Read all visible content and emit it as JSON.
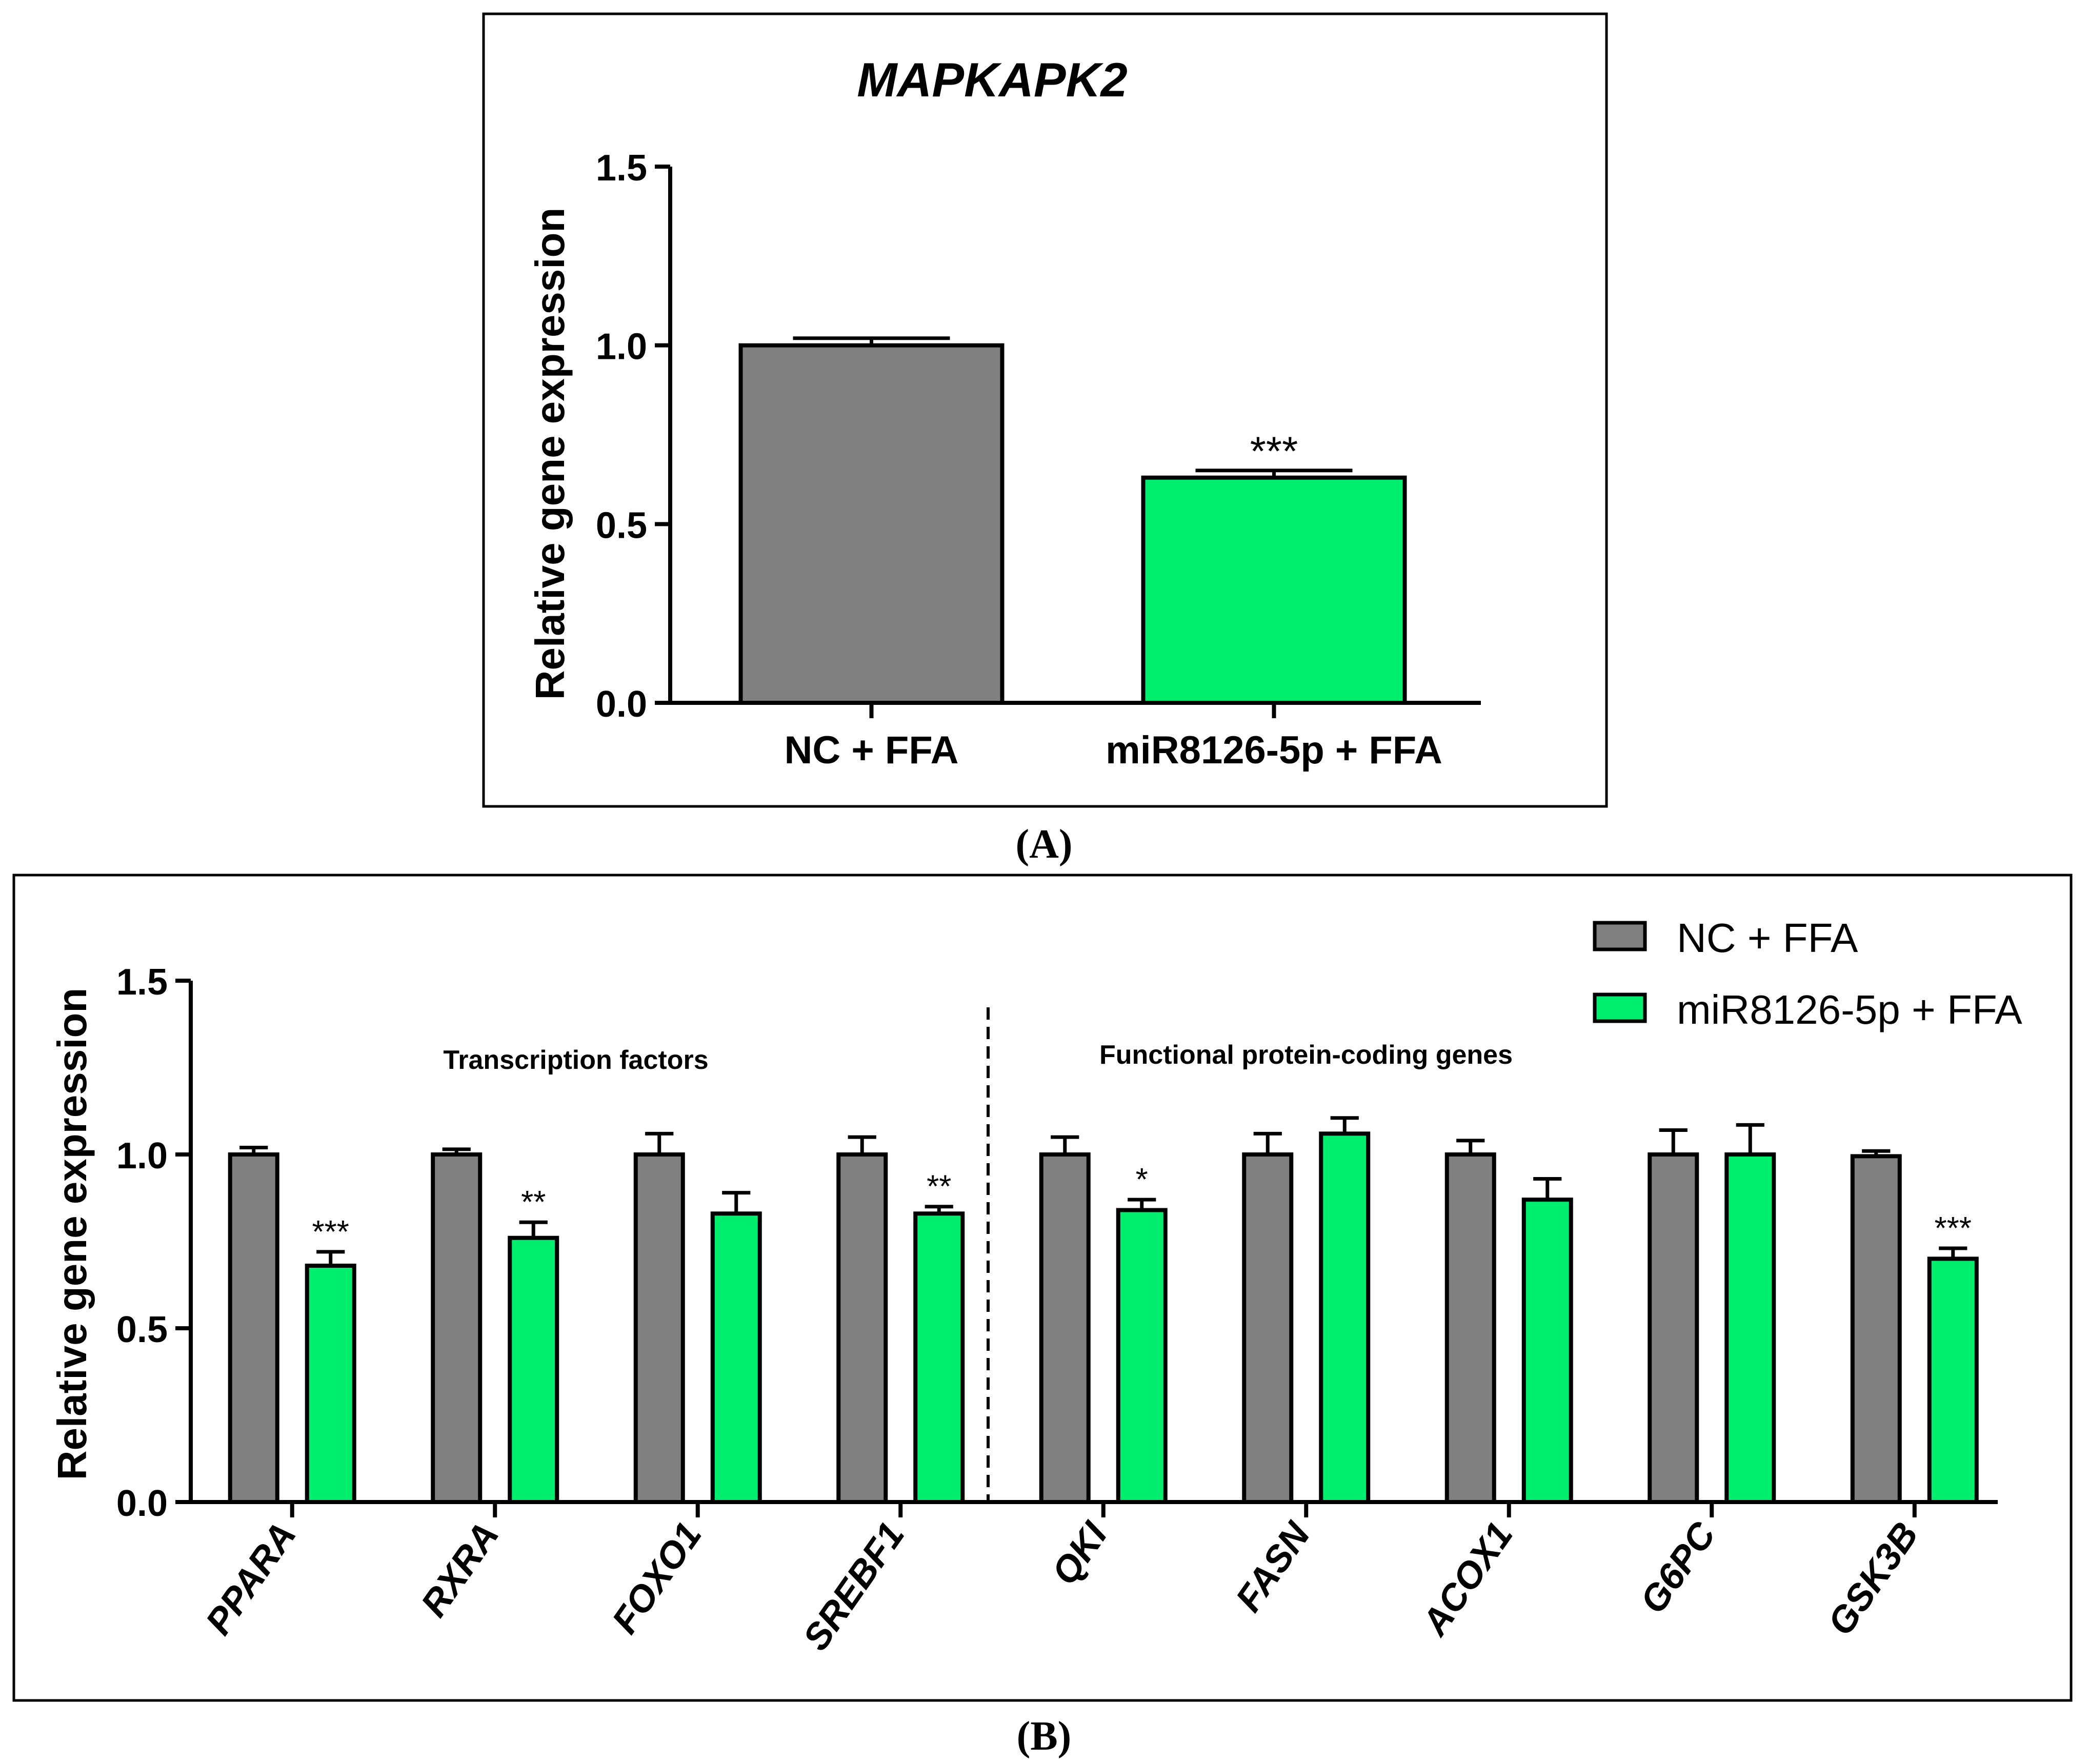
{
  "colors": {
    "nc": "#808080",
    "mir": "#00EE6E",
    "stroke": "#000000"
  },
  "chart_data": [
    {
      "panel": "A",
      "type": "bar",
      "title": "MAPKAPK2",
      "ylabel": "Relative gene expression",
      "xlabel": "",
      "ylim": [
        0,
        1.5
      ],
      "yticks": [
        "0.0",
        "0.5",
        "1.0",
        "1.5"
      ],
      "ytick_values": [
        0,
        0.5,
        1.0,
        1.5
      ],
      "grid": false,
      "categories": [
        "NC + FFA",
        "miR8126-5p + FFA"
      ],
      "values": [
        1.0,
        0.63
      ],
      "errors": [
        0.02,
        0.02
      ],
      "significance": [
        "",
        "***"
      ]
    },
    {
      "panel": "B",
      "type": "bar",
      "title": "",
      "ylabel": "Relative gene expression",
      "xlabel": "",
      "ylim": [
        0,
        1.5
      ],
      "yticks": [
        "0.0",
        "0.5",
        "1.0",
        "1.5"
      ],
      "ytick_values": [
        0,
        0.5,
        1.0,
        1.5
      ],
      "grid": false,
      "legend_position": "top-right",
      "categories": [
        "PPARA",
        "RXRA",
        "FOXO1",
        "SREBF1",
        "QKI",
        "FASN",
        "ACOX1",
        "G6PC",
        "GSK3B"
      ],
      "series": [
        {
          "name": "NC + FFA",
          "values": [
            1.0,
            1.0,
            1.0,
            1.0,
            1.0,
            1.0,
            1.0,
            1.0,
            0.995
          ],
          "errors": [
            0.02,
            0.015,
            0.06,
            0.05,
            0.05,
            0.06,
            0.04,
            0.07,
            0.015
          ],
          "significance": [
            "",
            "",
            "",
            "",
            "",
            "",
            "",
            "",
            ""
          ]
        },
        {
          "name": "miR8126-5p + FFA",
          "values": [
            0.68,
            0.76,
            0.83,
            0.83,
            0.84,
            1.06,
            0.87,
            1.0,
            0.7
          ],
          "errors": [
            0.04,
            0.045,
            0.06,
            0.02,
            0.03,
            0.045,
            0.06,
            0.085,
            0.03
          ],
          "significance": [
            "***",
            "**",
            "",
            "**",
            "*",
            "",
            "",
            "",
            "***"
          ]
        }
      ],
      "group_labels": [
        "Transcription factors",
        "Functional protein-coding genes"
      ],
      "divider_after_index": 3
    }
  ],
  "panel_labels": {
    "a": "(A)",
    "b": "(B)"
  }
}
